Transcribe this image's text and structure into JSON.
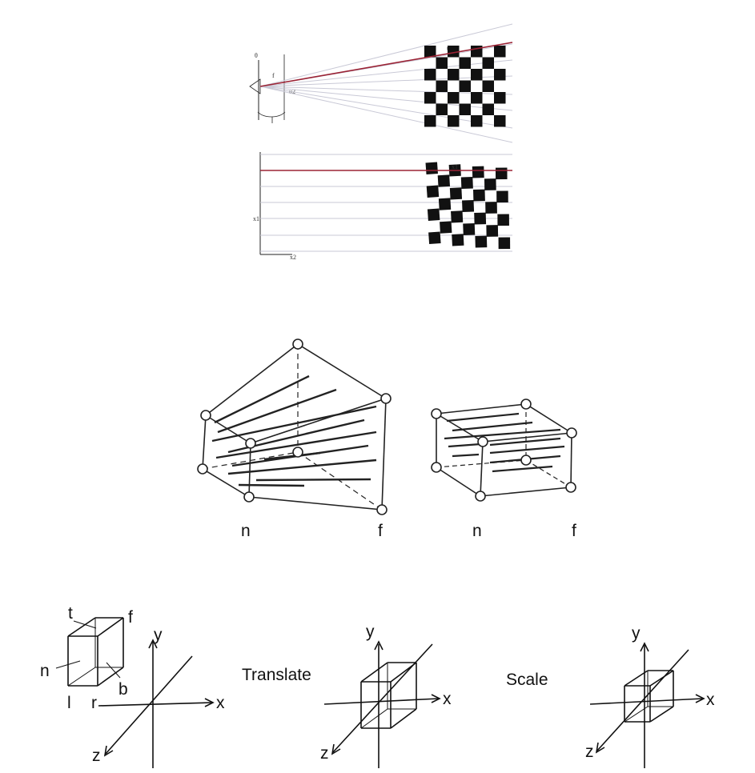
{
  "figure1": {
    "labels": {
      "top_axis": "θ",
      "near": "f",
      "grid_corner_top": "u1",
      "grid_corner_mid": "u2",
      "bottom_axis_y": "x1",
      "bottom_axis_x": "x2",
      "warped_corner": "x1"
    },
    "colors": {
      "ray": "#c9c9d6",
      "highlight": "#9b2335",
      "checker": "#111111"
    }
  },
  "figure2": {
    "frustum": {
      "near_label": "n",
      "far_label": "f"
    },
    "box": {
      "near_label": "n",
      "far_label": "f"
    }
  },
  "figure3": {
    "box_labels": {
      "top": "t",
      "far": "f",
      "near": "n",
      "bottom": "b",
      "left": "l",
      "right": "r"
    },
    "axes": {
      "x": "x",
      "y": "y",
      "z": "z"
    },
    "translate_label": "Translate",
    "scale_label": "Scale"
  }
}
